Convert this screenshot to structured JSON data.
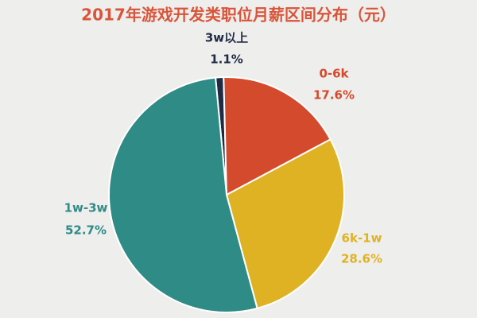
{
  "chart_data": {
    "type": "pie",
    "title": "2017年游戏开发类职位月薪区间分布（元）",
    "categories": [
      "3w以上",
      "0-6k",
      "6k-1w",
      "1w-3w"
    ],
    "values": [
      1.1,
      17.6,
      28.6,
      52.7
    ],
    "value_labels": [
      "1.1%",
      "17.6%",
      "28.6%",
      "52.7%"
    ],
    "colors": [
      "#1f2a44",
      "#d44a2c",
      "#dfb224",
      "#2f8b86"
    ]
  }
}
